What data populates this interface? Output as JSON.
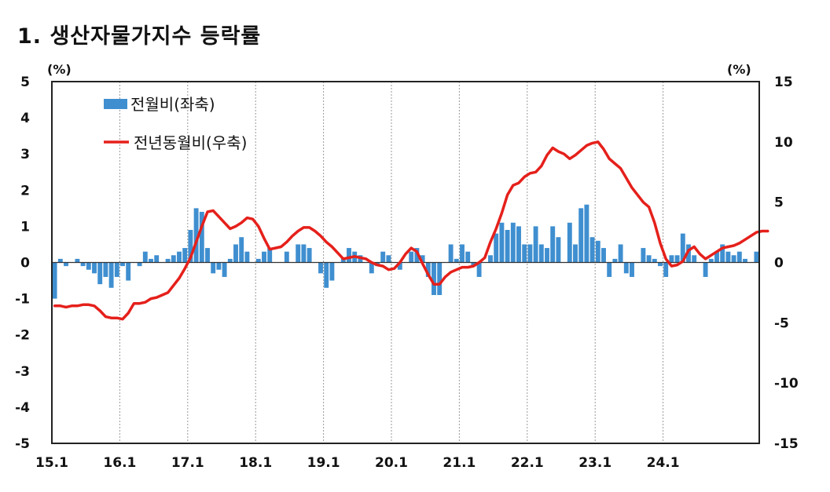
{
  "title": "1. 생산자물가지수 등락률",
  "chart_data": {
    "type": "bar+line",
    "left_axis": {
      "unit": "(%)",
      "ylim": [
        -5,
        5
      ],
      "ticks": [
        "5",
        "4",
        "3",
        "2",
        "1",
        "0",
        "-1",
        "-2",
        "-3",
        "-4",
        "-5"
      ]
    },
    "right_axis": {
      "unit": "(%)",
      "ylim": [
        -15,
        15
      ],
      "ticks": [
        "15",
        "10",
        "5",
        "0",
        "-5",
        "-10",
        "-15"
      ]
    },
    "x_tick_labels": [
      "15.1",
      "16.1",
      "17.1",
      "18.1",
      "19.1",
      "20.1",
      "21.1",
      "22.1",
      "23.1",
      "24.1"
    ],
    "legend": [
      "전월비(좌축)",
      "전년동월비(우축)"
    ],
    "series": [
      {
        "name": "전월비(좌축)",
        "axis": "left",
        "color": "#3f8fd0",
        "values": [
          -1.0,
          0.1,
          -0.1,
          0.0,
          0.1,
          -0.1,
          -0.2,
          -0.3,
          -0.6,
          -0.4,
          -0.7,
          -0.4,
          -0.1,
          -0.5,
          0.0,
          -0.1,
          0.3,
          0.1,
          0.2,
          0.0,
          0.1,
          0.2,
          0.3,
          0.4,
          0.9,
          1.5,
          1.4,
          0.4,
          -0.3,
          -0.2,
          -0.4,
          0.1,
          0.5,
          0.7,
          0.3,
          0.0,
          0.1,
          0.3,
          0.4,
          0.0,
          0.0,
          0.3,
          0.0,
          0.5,
          0.5,
          0.4,
          0.0,
          -0.3,
          -0.7,
          -0.5,
          0.0,
          0.1,
          0.4,
          0.3,
          0.2,
          0.0,
          -0.3,
          -0.1,
          0.3,
          0.2,
          0.0,
          -0.2,
          0.0,
          0.3,
          0.4,
          0.2,
          -0.4,
          -0.9,
          -0.9,
          0.0,
          0.5,
          0.1,
          0.5,
          0.3,
          -0.1,
          -0.4,
          0.0,
          0.2,
          0.8,
          1.1,
          0.9,
          1.1,
          1.0,
          0.5,
          0.5,
          1.0,
          0.5,
          0.4,
          1.0,
          0.7,
          0.0,
          1.1,
          0.5,
          1.5,
          1.6,
          0.7,
          0.6,
          0.4,
          -0.4,
          0.1,
          0.5,
          -0.3,
          -0.4,
          0.0,
          0.4,
          0.2,
          0.1,
          -0.1,
          -0.4,
          0.2,
          0.2,
          0.8,
          0.5,
          0.2,
          0.0,
          -0.4,
          0.1,
          0.3,
          0.5,
          0.3,
          0.2,
          0.3,
          0.1,
          0.0,
          0.3
        ]
      },
      {
        "name": "전년동월비(우축)",
        "axis": "right",
        "color": "#e5201b",
        "values": [
          -3.6,
          -3.6,
          -3.7,
          -3.6,
          -3.6,
          -3.5,
          -3.5,
          -3.6,
          -4.0,
          -4.5,
          -4.6,
          -4.6,
          -4.7,
          -4.2,
          -3.4,
          -3.4,
          -3.3,
          -3.0,
          -2.9,
          -2.7,
          -2.5,
          -1.9,
          -1.3,
          -0.5,
          0.4,
          1.7,
          3.0,
          4.2,
          4.3,
          3.8,
          3.3,
          2.8,
          3.0,
          3.3,
          3.7,
          3.6,
          3.0,
          2.0,
          1.1,
          1.2,
          1.3,
          1.7,
          2.2,
          2.6,
          2.9,
          2.9,
          2.6,
          2.2,
          1.7,
          1.3,
          0.8,
          0.3,
          0.4,
          0.5,
          0.4,
          0.3,
          0.0,
          -0.2,
          -0.3,
          -0.6,
          -0.5,
          0.0,
          0.7,
          1.2,
          0.9,
          -0.1,
          -1.0,
          -1.8,
          -1.8,
          -1.2,
          -0.8,
          -0.6,
          -0.4,
          -0.4,
          -0.3,
          0.0,
          0.4,
          1.7,
          2.8,
          4.1,
          5.6,
          6.4,
          6.6,
          7.1,
          7.4,
          7.5,
          8.0,
          8.9,
          9.5,
          9.2,
          9.0,
          8.6,
          8.9,
          9.3,
          9.7,
          9.9,
          10.0,
          9.4,
          8.6,
          8.2,
          7.8,
          7.0,
          6.2,
          5.6,
          5.0,
          4.6,
          3.3,
          1.6,
          0.3,
          -0.3,
          -0.2,
          0.1,
          1.0,
          1.3,
          0.7,
          0.3,
          0.6,
          0.9,
          1.2,
          1.3,
          1.4,
          1.6,
          1.9,
          2.2,
          2.5,
          2.6,
          2.6
        ]
      }
    ]
  }
}
